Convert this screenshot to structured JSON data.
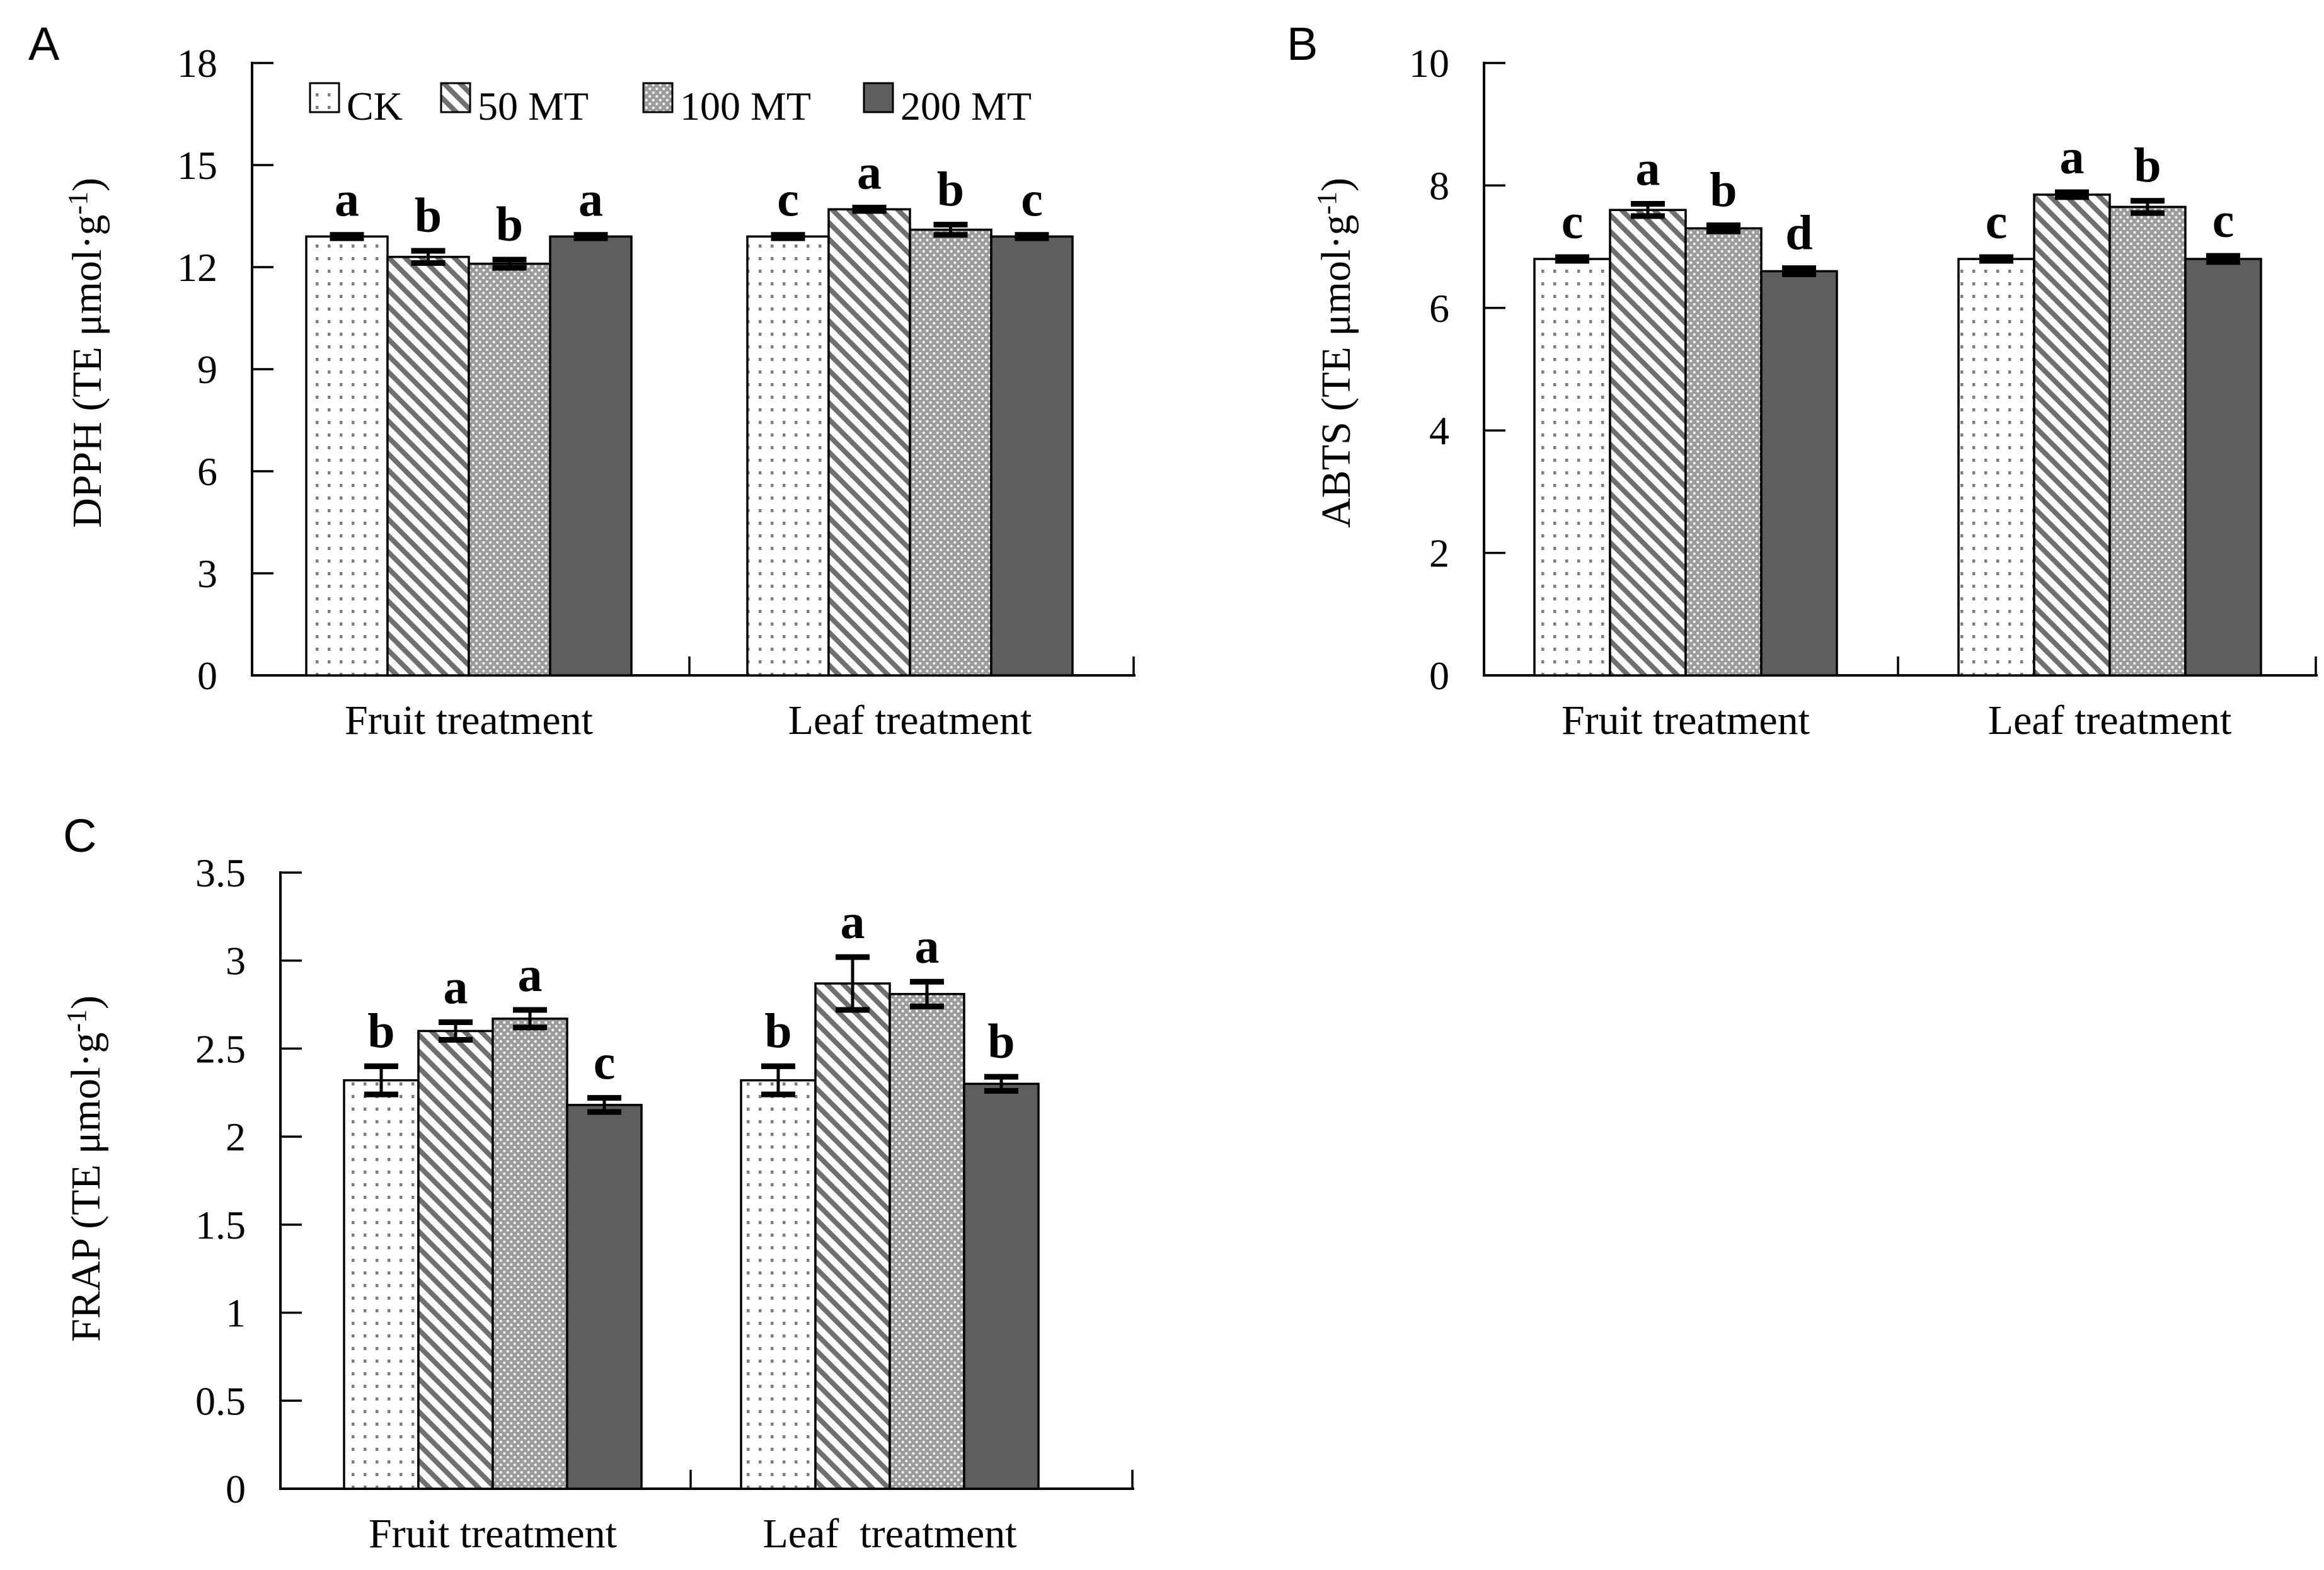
{
  "figure": {
    "panel_labels": [
      "A",
      "B",
      "C"
    ]
  },
  "legend": {
    "items": [
      {
        "label": "CK",
        "pattern": "ck"
      },
      {
        "label": "50 MT",
        "pattern": "mt50"
      },
      {
        "label": "100 MT",
        "pattern": "mt100"
      },
      {
        "label": "200 MT",
        "pattern": "mt200"
      }
    ]
  },
  "colors": {
    "ink": "#000000",
    "hatch_gray": "#6f6f6f",
    "ck_dot_gray": "#7d7d7d",
    "dense_bg_gray": "#9c9c9c",
    "dense_dot_white": "#f4f4f4",
    "solid_dark_gray": "#5e5e5e",
    "background": "#ffffff"
  },
  "chart_data": [
    {
      "type": "bar",
      "panel": "A",
      "ylabel_prefix": "DPPH  (TE μmol·g",
      "ylabel_sup": "-1",
      "ylabel_suffix": ")",
      "ylim": [
        0,
        18
      ],
      "yticks": [
        "0",
        "3",
        "6",
        "9",
        "12",
        "15",
        "18"
      ],
      "grid": false,
      "legend_position": "top-inside",
      "legend_visible": true,
      "series": [
        "CK",
        "50 MT",
        "100 MT",
        "200 MT"
      ],
      "categories": [
        "Fruit treatment",
        "Leaf treatment"
      ],
      "groups": [
        {
          "category": "Fruit treatment",
          "values": [
            12.9,
            12.3,
            12.1,
            12.9
          ],
          "errors": [
            0.05,
            0.18,
            0.12,
            0.05
          ],
          "letters": [
            "a",
            "b",
            "b",
            "a"
          ]
        },
        {
          "category": "Leaf treatment",
          "values": [
            12.9,
            13.7,
            13.1,
            12.9
          ],
          "errors": [
            0.05,
            0.05,
            0.15,
            0.05
          ],
          "letters": [
            "c",
            "a",
            "b",
            "c"
          ]
        }
      ]
    },
    {
      "type": "bar",
      "panel": "B",
      "ylabel_prefix": "ABTS  (TE μmol·g",
      "ylabel_sup": "-1",
      "ylabel_suffix": ")",
      "ylim": [
        0,
        10
      ],
      "yticks": [
        "0",
        "2",
        "4",
        "6",
        "8",
        "10"
      ],
      "grid": false,
      "legend_visible": false,
      "series": [
        "CK",
        "50 MT",
        "100 MT",
        "200 MT"
      ],
      "categories": [
        "Fruit treatment",
        "Leaf treatment"
      ],
      "groups": [
        {
          "category": "Fruit treatment",
          "values": [
            6.8,
            7.6,
            7.3,
            6.6
          ],
          "errors": [
            0.03,
            0.1,
            0.05,
            0.05
          ],
          "letters": [
            "c",
            "a",
            "b",
            "d"
          ]
        },
        {
          "category": "Leaf treatment",
          "values": [
            6.8,
            7.85,
            7.65,
            6.8
          ],
          "errors": [
            0.03,
            0.04,
            0.1,
            0.05
          ],
          "letters": [
            "c",
            "a",
            "b",
            "c"
          ]
        }
      ]
    },
    {
      "type": "bar",
      "panel": "C",
      "ylabel_prefix": "FRAP  (TE μmol·g",
      "ylabel_sup": "-1",
      "ylabel_suffix": ")",
      "ylim": [
        0,
        3.5
      ],
      "yticks": [
        "0",
        "0.5",
        "1",
        "1.5",
        "2",
        "2.5",
        "3",
        "3.5"
      ],
      "grid": false,
      "legend_visible": false,
      "series": [
        "CK",
        "50 MT",
        "100 MT",
        "200 MT"
      ],
      "categories": [
        "Fruit treatment",
        "Leaf  treatment"
      ],
      "groups": [
        {
          "category": "Fruit treatment",
          "values": [
            2.32,
            2.6,
            2.67,
            2.18
          ],
          "errors": [
            0.08,
            0.05,
            0.05,
            0.04
          ],
          "letters": [
            "b",
            "a",
            "a",
            "c"
          ]
        },
        {
          "category": "Leaf  treatment",
          "values": [
            2.32,
            2.87,
            2.81,
            2.3
          ],
          "errors": [
            0.08,
            0.15,
            0.07,
            0.04
          ],
          "letters": [
            "b",
            "a",
            "a",
            "b"
          ]
        }
      ]
    }
  ]
}
